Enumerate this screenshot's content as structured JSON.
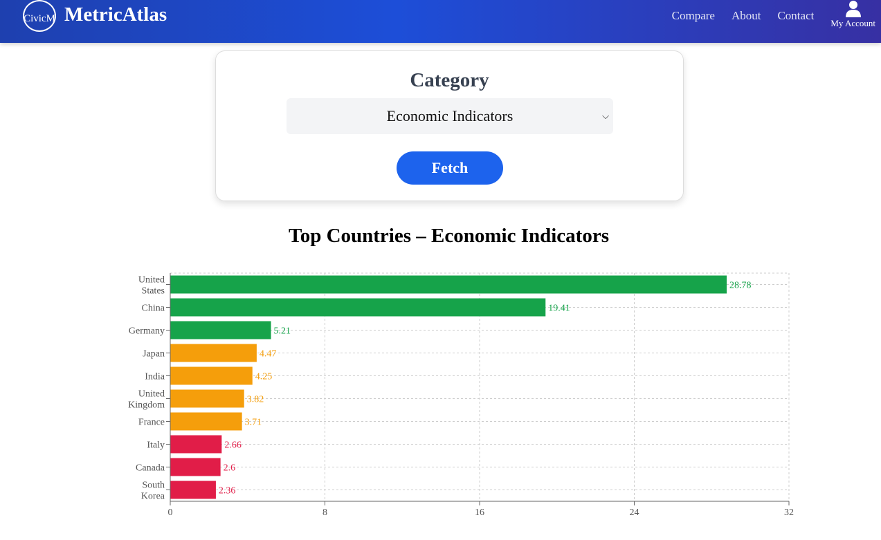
{
  "nav": {
    "logo_alt": "CivicM",
    "brand": "MetricAtlas",
    "links": [
      "Compare",
      "About",
      "Contact"
    ],
    "account": "My Account"
  },
  "form": {
    "heading": "Category",
    "selected": "Economic Indicators",
    "fetch": "Fetch"
  },
  "chart_title": "Top Countries – Economic Indicators",
  "colors": {
    "high": "#16a34a",
    "mid": "#f59e0b",
    "low": "#e11d48"
  },
  "chart_data": {
    "type": "bar",
    "orientation": "horizontal",
    "title": "Top Countries – Economic Indicators",
    "categories": [
      "United States",
      "China",
      "Germany",
      "Japan",
      "India",
      "United Kingdom",
      "France",
      "Italy",
      "Canada",
      "South Korea"
    ],
    "values": [
      28.78,
      19.41,
      5.21,
      4.47,
      4.25,
      3.82,
      3.71,
      2.66,
      2.6,
      2.36
    ],
    "tiers": [
      "high",
      "high",
      "high",
      "mid",
      "mid",
      "mid",
      "mid",
      "low",
      "low",
      "low"
    ],
    "xlim": [
      0,
      32
    ],
    "xticks": [
      0,
      8,
      16,
      24,
      32
    ],
    "grid": true
  }
}
